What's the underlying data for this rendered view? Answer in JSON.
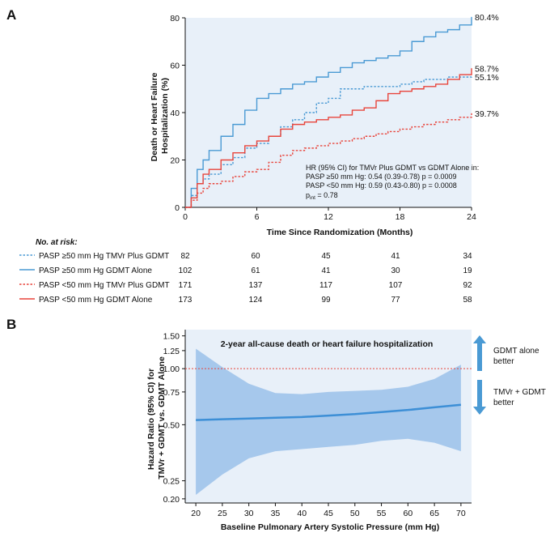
{
  "panel_a_label": "A",
  "panel_b_label": "B",
  "chart_data": [
    {
      "type": "line",
      "step": true,
      "xlabel": "Time Since Randomization (Months)",
      "ylabel_lines": [
        "Death or Heart Failure",
        "Hospitalization (%)"
      ],
      "xlim": [
        0,
        24
      ],
      "ylim": [
        0,
        80
      ],
      "xticks": [
        0,
        6,
        12,
        18,
        24
      ],
      "yticks": [
        0,
        20,
        40,
        60,
        80
      ],
      "x_tick_labels": [
        "0",
        "6",
        "12",
        "18",
        "24"
      ],
      "y_tick_labels": [
        "0",
        "20",
        "40",
        "60",
        "80"
      ],
      "background": "#e8f0f9",
      "annotation": {
        "line1": "HR (95% CI) for TMVr Plus GDMT vs GDMT Alone in:",
        "line2": "PASP ≥50 mm Hg: 0.54 (0.39-0.78) p = 0.0009",
        "line3": "PASP <50 mm Hg: 0.59 (0.43-0.80) p = 0.0008",
        "pint_p": "p",
        "pint_sub": "int",
        "pint_rest": " = 0.78"
      },
      "series": [
        {
          "name": "PASP ≥50 mm Hg TMVr Plus GDMT",
          "color": "#4a9ad4",
          "dashed": true,
          "end_label": "55.1%",
          "points": [
            [
              0,
              0
            ],
            [
              0.5,
              5
            ],
            [
              1,
              10
            ],
            [
              1.5,
              12
            ],
            [
              2,
              14
            ],
            [
              3,
              18
            ],
            [
              4,
              21
            ],
            [
              5,
              25
            ],
            [
              6,
              27
            ],
            [
              7,
              30
            ],
            [
              8,
              34
            ],
            [
              9,
              37
            ],
            [
              10,
              40
            ],
            [
              11,
              44
            ],
            [
              12,
              46
            ],
            [
              13,
              50
            ],
            [
              14,
              50
            ],
            [
              15,
              51
            ],
            [
              16,
              51
            ],
            [
              17,
              51
            ],
            [
              18,
              52
            ],
            [
              19,
              53
            ],
            [
              20,
              54
            ],
            [
              22,
              55
            ],
            [
              24,
              55.1
            ]
          ]
        },
        {
          "name": "PASP ≥50 mm Hg GDMT Alone",
          "color": "#4a9ad4",
          "dashed": false,
          "end_label": "80.4%",
          "points": [
            [
              0,
              0
            ],
            [
              0.5,
              8
            ],
            [
              1,
              16
            ],
            [
              1.5,
              20
            ],
            [
              2,
              24
            ],
            [
              3,
              30
            ],
            [
              4,
              35
            ],
            [
              5,
              41
            ],
            [
              6,
              46
            ],
            [
              7,
              48
            ],
            [
              8,
              50
            ],
            [
              9,
              52
            ],
            [
              10,
              53
            ],
            [
              11,
              55
            ],
            [
              12,
              57
            ],
            [
              13,
              59
            ],
            [
              14,
              61
            ],
            [
              15,
              62
            ],
            [
              16,
              63
            ],
            [
              17,
              64
            ],
            [
              18,
              66
            ],
            [
              19,
              70
            ],
            [
              20,
              72
            ],
            [
              21,
              74
            ],
            [
              22,
              75
            ],
            [
              23,
              77
            ],
            [
              24,
              80.4
            ]
          ]
        },
        {
          "name": "PASP <50 mm Hg TMVr Plus GDMT",
          "color": "#e8453c",
          "dashed": true,
          "end_label": "39.7%",
          "points": [
            [
              0,
              0
            ],
            [
              0.5,
              3
            ],
            [
              1,
              6
            ],
            [
              1.5,
              8
            ],
            [
              2,
              10
            ],
            [
              3,
              11
            ],
            [
              4,
              13
            ],
            [
              5,
              15
            ],
            [
              6,
              16
            ],
            [
              7,
              19
            ],
            [
              8,
              22
            ],
            [
              9,
              24
            ],
            [
              10,
              25
            ],
            [
              11,
              26
            ],
            [
              12,
              27
            ],
            [
              13,
              28
            ],
            [
              14,
              29
            ],
            [
              15,
              30
            ],
            [
              16,
              31
            ],
            [
              17,
              32
            ],
            [
              18,
              33
            ],
            [
              19,
              34
            ],
            [
              20,
              35
            ],
            [
              21,
              36
            ],
            [
              22,
              37
            ],
            [
              23,
              38
            ],
            [
              24,
              39.7
            ]
          ]
        },
        {
          "name": "PASP <50 mm Hg GDMT Alone",
          "color": "#e8453c",
          "dashed": false,
          "end_label": "58.7%",
          "points": [
            [
              0,
              0
            ],
            [
              0.5,
              4
            ],
            [
              1,
              10
            ],
            [
              1.5,
              14
            ],
            [
              2,
              16
            ],
            [
              3,
              20
            ],
            [
              4,
              23
            ],
            [
              5,
              26
            ],
            [
              6,
              28
            ],
            [
              7,
              30
            ],
            [
              8,
              33
            ],
            [
              9,
              35
            ],
            [
              10,
              36
            ],
            [
              11,
              37
            ],
            [
              12,
              38
            ],
            [
              13,
              39
            ],
            [
              14,
              41
            ],
            [
              15,
              42
            ],
            [
              16,
              45
            ],
            [
              17,
              48
            ],
            [
              18,
              49
            ],
            [
              19,
              50
            ],
            [
              20,
              51
            ],
            [
              21,
              52
            ],
            [
              22,
              54
            ],
            [
              23,
              56
            ],
            [
              24,
              58.7
            ]
          ]
        }
      ],
      "at_risk": {
        "heading": "No. at risk:",
        "rows": [
          {
            "label": "PASP ≥50 mm Hg TMVr Plus GDMT",
            "values": [
              "82",
              "60",
              "45",
              "41",
              "34"
            ]
          },
          {
            "label": "PASP ≥50 mm Hg GDMT Alone",
            "values": [
              "102",
              "61",
              "41",
              "30",
              "19"
            ]
          },
          {
            "label": "PASP <50 mm Hg TMVr Plus GDMT",
            "values": [
              "171",
              "137",
              "117",
              "107",
              "92"
            ]
          },
          {
            "label": "PASP <50 mm Hg GDMT Alone",
            "values": [
              "173",
              "124",
              "99",
              "77",
              "58"
            ]
          }
        ]
      }
    },
    {
      "type": "line",
      "title": "2-year all-cause death or heart failure hospitalization",
      "xlabel": "Baseline Pulmonary Artery Systolic Pressure (mm Hg)",
      "ylabel_lines": [
        "Hazard Ratio (95% CI) for",
        "TMVr + GDMT vs. GDMT Alone"
      ],
      "xlim": [
        18,
        72
      ],
      "ylim": [
        0.19,
        1.62
      ],
      "log_y": true,
      "xticks": [
        20,
        25,
        30,
        35,
        40,
        45,
        50,
        55,
        60,
        65,
        70
      ],
      "x_tick_labels": [
        "20",
        "25",
        "30",
        "35",
        "40",
        "45",
        "50",
        "55",
        "60",
        "65",
        "70"
      ],
      "yticks": [
        0.2,
        0.25,
        0.5,
        0.75,
        1.0,
        1.25,
        1.5
      ],
      "y_tick_labels": [
        "0.20",
        "0.25",
        "0.50",
        "0.75",
        "1.00",
        "1.25",
        "1.50"
      ],
      "reference_line": 1.0,
      "background": "#e8f0f9",
      "band_color": "#a6c8ec",
      "line_color": "#3d8fd6",
      "ref_color": "#e8453c",
      "x": [
        20,
        25,
        30,
        35,
        40,
        45,
        50,
        55,
        60,
        65,
        70
      ],
      "hr": [
        0.53,
        0.535,
        0.54,
        0.545,
        0.55,
        0.56,
        0.57,
        0.585,
        0.6,
        0.62,
        0.64
      ],
      "upper": [
        1.28,
        1.02,
        0.83,
        0.74,
        0.73,
        0.75,
        0.76,
        0.77,
        0.8,
        0.88,
        1.05
      ],
      "lower": [
        0.21,
        0.27,
        0.33,
        0.36,
        0.37,
        0.38,
        0.39,
        0.41,
        0.42,
        0.4,
        0.36
      ],
      "arrows": {
        "up_label_1": "GDMT alone",
        "up_label_2": "better",
        "down_label_1": "TMVr + GDMT",
        "down_label_2": "better",
        "color": "#4a9ad4"
      }
    }
  ]
}
